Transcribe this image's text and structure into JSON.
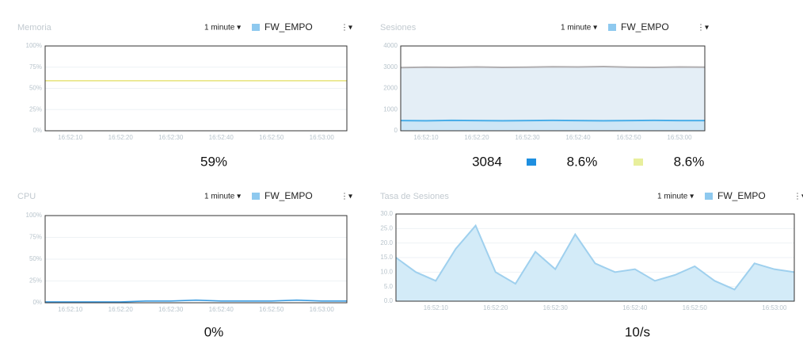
{
  "chart_data": [
    {
      "type": "line",
      "title": "Memoria",
      "period": "1 minute ▾",
      "source": "FW_EMPO",
      "menu": "⋮▾",
      "categories": [
        null,
        "16:52:10",
        null,
        "16:52:20",
        null,
        "16:52:30",
        null,
        "16:52:40",
        null,
        "16:52:50",
        null,
        "16:53:00",
        null
      ],
      "series": [
        {
          "color": "#e6e37a",
          "values": [
            59,
            59,
            59,
            59,
            59,
            59,
            59,
            59,
            59,
            59,
            59,
            59,
            59
          ]
        }
      ],
      "ylim": [
        0,
        100
      ],
      "yticks": [
        {
          "value": 0,
          "label": "0%"
        },
        {
          "value": 25,
          "label": "25%"
        },
        {
          "value": 50,
          "label": "50%"
        },
        {
          "value": 75,
          "label": "75%"
        },
        {
          "value": 100,
          "label": "100%"
        }
      ],
      "summary": [
        {
          "text": "59%"
        }
      ]
    },
    {
      "type": "area",
      "title": "Sesiones",
      "period": "1 minute ▾",
      "source": "FW_EMPO",
      "menu": "⋮▾",
      "categories": [
        null,
        "16:52:10",
        null,
        "16:52:20",
        null,
        "16:52:30",
        null,
        "16:52:40",
        null,
        "16:52:50",
        null,
        "16:53:00",
        null
      ],
      "series": [
        {
          "color": "#b0aeb0",
          "fill": "#e4eef6",
          "values": [
            2980,
            3000,
            2990,
            3010,
            2990,
            3000,
            3020,
            3010,
            3030,
            3000,
            2990,
            3010,
            3000
          ]
        },
        {
          "color": "#4aaee8",
          "fill": "#cde6f6",
          "values": [
            480,
            470,
            490,
            480,
            470,
            480,
            490,
            480,
            470,
            480,
            490,
            480,
            480
          ]
        }
      ],
      "ylim": [
        0,
        4000
      ],
      "yticks": [
        0,
        1000,
        2000,
        3000,
        4000
      ],
      "summary": [
        {
          "text": "3084"
        },
        {
          "text": "8.6%",
          "color": "#1e8fe0"
        },
        {
          "text": "8.6%",
          "color": "#e8ef9c"
        }
      ]
    },
    {
      "type": "line",
      "title": "CPU",
      "period": "1 minute ▾",
      "source": "FW_EMPO",
      "menu": "⋮▾",
      "categories": [
        null,
        "16:52:10",
        null,
        "16:52:20",
        null,
        "16:52:30",
        null,
        "16:52:40",
        null,
        "16:52:50",
        null,
        "16:53:00",
        null
      ],
      "series": [
        {
          "color": "#3a9be0",
          "values": [
            1,
            1,
            1,
            1,
            2,
            2,
            3,
            2,
            2,
            2,
            3,
            2,
            2
          ]
        }
      ],
      "ylim": [
        0,
        100
      ],
      "yticks": [
        {
          "value": 0,
          "label": "0%"
        },
        {
          "value": 25,
          "label": "25%"
        },
        {
          "value": 50,
          "label": "50%"
        },
        {
          "value": 75,
          "label": "75%"
        },
        {
          "value": 100,
          "label": "100%"
        }
      ],
      "summary": [
        {
          "text": "0%"
        }
      ]
    },
    {
      "type": "area",
      "title": "Tasa de Sesiones",
      "period": "1 minute ▾",
      "source": "FW_EMPO",
      "menu": "⋮▾",
      "categories": [
        null,
        null,
        "16:52:10",
        null,
        null,
        "16:52:20",
        null,
        null,
        "16:52:30",
        null,
        null,
        null,
        "16:52:40",
        null,
        null,
        "16:52:50",
        null,
        null,
        null,
        "16:53:00",
        null
      ],
      "series": [
        {
          "color": "#9fd0ee",
          "fill": "#d3ebf8",
          "values": [
            15,
            10,
            7,
            18,
            26,
            10,
            6,
            17,
            11,
            23,
            13,
            10,
            11,
            7,
            9,
            12,
            7,
            4,
            13,
            11,
            10
          ]
        }
      ],
      "ylim": [
        0,
        30
      ],
      "yticks": [
        {
          "value": 0,
          "label": "0.0"
        },
        {
          "value": 5,
          "label": "5.0"
        },
        {
          "value": 10,
          "label": "10.0"
        },
        {
          "value": 15,
          "label": "15.0"
        },
        {
          "value": 20,
          "label": "20.0"
        },
        {
          "value": 25,
          "label": "25.0"
        },
        {
          "value": 30,
          "label": "30.0"
        }
      ],
      "summary": [
        {
          "text": "10/s"
        }
      ]
    }
  ]
}
